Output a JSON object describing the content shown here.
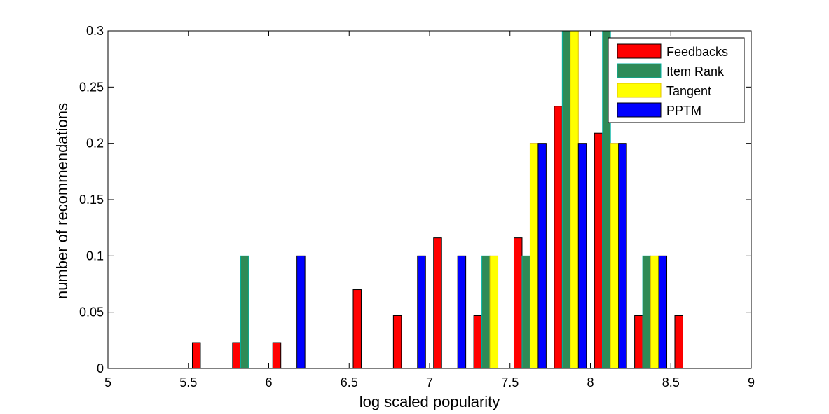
{
  "chart_data": {
    "type": "bar",
    "title": "",
    "xlabel": "log scaled popularity",
    "ylabel": "number of recommendations",
    "xlim": [
      5,
      9
    ],
    "ylim": [
      0,
      0.3
    ],
    "xticks": [
      "5",
      "5.5",
      "6",
      "6.5",
      "7",
      "7.5",
      "8",
      "8.5",
      "9"
    ],
    "yticks": [
      "0",
      "0.05",
      "0.1",
      "0.15",
      "0.2",
      "0.25",
      "0.3"
    ],
    "grid": false,
    "legend_position": "top-right",
    "x": [
      5.125,
      5.375,
      5.625,
      5.875,
      6.125,
      6.375,
      6.625,
      6.875,
      7.125,
      7.375,
      7.625,
      7.875,
      8.125,
      8.375,
      8.625,
      8.875
    ],
    "series": [
      {
        "name": "Feedbacks",
        "color": "#ff0000",
        "edge": "#000000",
        "values": [
          0,
          0,
          0.023,
          0.023,
          0.023,
          0,
          0.07,
          0.047,
          0.116,
          0.047,
          0.116,
          0.233,
          0.209,
          0.047,
          0.047,
          0
        ]
      },
      {
        "name": "Item Rank",
        "color": "#2e8b57",
        "edge": "#00b3a4",
        "values": [
          0,
          0,
          0,
          0.1,
          0,
          0,
          0,
          0,
          0,
          0.1,
          0.1,
          0.3,
          0.3,
          0.1,
          0,
          0
        ]
      },
      {
        "name": "Tangent",
        "color": "#ffff00",
        "edge": "#e0c000",
        "values": [
          0,
          0,
          0,
          0,
          0,
          0,
          0,
          0,
          0,
          0.1,
          0.2,
          0.3,
          0.2,
          0.1,
          0,
          0
        ]
      },
      {
        "name": "PPTM",
        "color": "#0000ff",
        "edge": "#000000",
        "values": [
          0,
          0,
          0,
          0,
          0.1,
          0,
          0,
          0.1,
          0.1,
          0,
          0.2,
          0.2,
          0.2,
          0.1,
          0,
          0
        ]
      }
    ]
  }
}
